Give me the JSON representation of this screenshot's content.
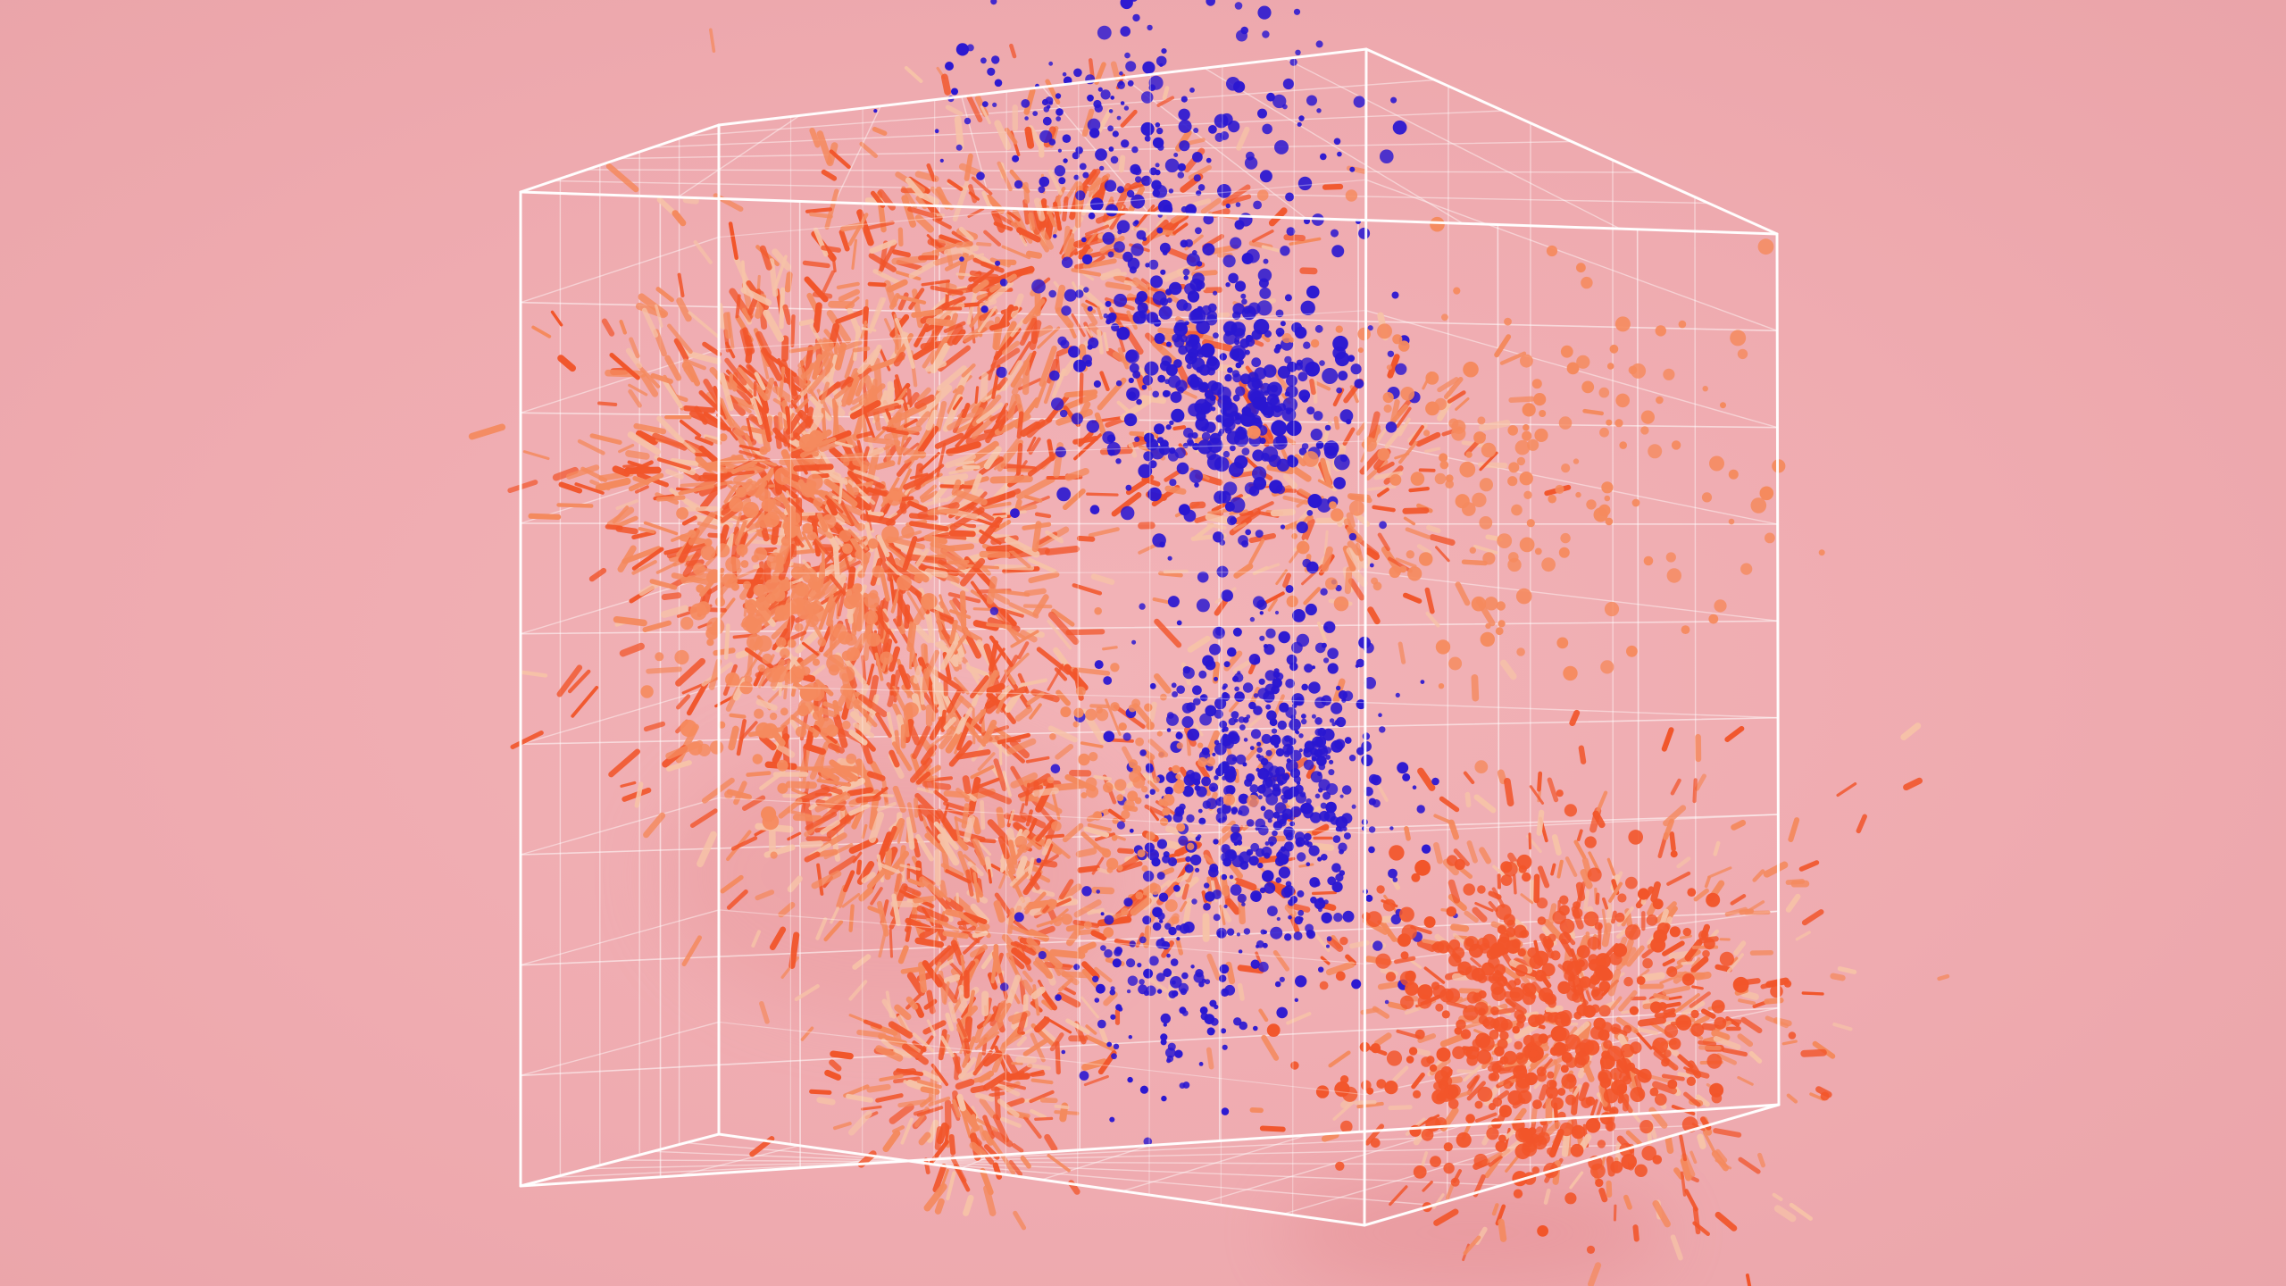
{
  "scene": {
    "background": "#efadb1",
    "grid_color": "#ffffff",
    "cluster_colors": {
      "orange": "#f2552a",
      "light_orange": "#f58a5e",
      "pale": "#f7c3a8",
      "blue": "#2a17d1"
    },
    "elements": [
      "wireframe-cube",
      "orange-particle-cluster",
      "blue-particle-cluster",
      "orange-sphere-cluster"
    ]
  }
}
